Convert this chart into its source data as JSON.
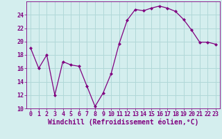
{
  "x": [
    0,
    1,
    2,
    3,
    4,
    5,
    6,
    7,
    8,
    9,
    10,
    11,
    12,
    13,
    14,
    15,
    16,
    17,
    18,
    19,
    20,
    21,
    22,
    23
  ],
  "y": [
    19,
    16,
    18,
    12,
    17,
    16.5,
    16.3,
    13.3,
    10.3,
    12.3,
    15.2,
    19.7,
    23.2,
    24.8,
    24.6,
    25.0,
    25.3,
    25.0,
    24.5,
    23.3,
    21.7,
    19.9,
    19.9,
    19.6
  ],
  "line_color": "#800080",
  "marker": "D",
  "marker_size": 2,
  "bg_color": "#d4eeee",
  "grid_color": "#b0d8d8",
  "xlabel": "Windchill (Refroidissement éolien,°C)",
  "xlabel_fontsize": 7,
  "tick_fontsize": 6,
  "ylim": [
    10,
    26
  ],
  "yticks": [
    10,
    12,
    14,
    16,
    18,
    20,
    22,
    24
  ],
  "xlim": [
    -0.5,
    23.5
  ],
  "xticks": [
    0,
    1,
    2,
    3,
    4,
    5,
    6,
    7,
    8,
    9,
    10,
    11,
    12,
    13,
    14,
    15,
    16,
    17,
    18,
    19,
    20,
    21,
    22,
    23
  ]
}
